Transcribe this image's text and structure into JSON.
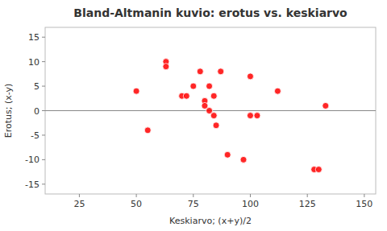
{
  "chart_data": {
    "type": "scatter",
    "title": "Bland-Altmanin kuvio: erotus vs. keskiarvo",
    "xlabel": "Keskiarvo; (x+y)/2",
    "ylabel": "Erotus; (x-y)",
    "x": [
      50,
      63,
      55,
      63,
      70,
      72,
      75,
      78,
      80,
      80,
      82,
      82,
      84,
      84,
      85,
      87,
      90,
      97,
      100,
      100,
      103,
      112,
      128,
      130,
      133
    ],
    "values": [
      4,
      10,
      -4,
      9,
      3,
      3,
      5,
      8,
      2,
      1,
      5,
      0,
      -1,
      3,
      -3,
      8,
      -9,
      -10,
      7,
      -1,
      -1,
      4,
      -12,
      -12,
      1
    ],
    "color": "#ff0000",
    "xlim": [
      10,
      155
    ],
    "ylim": [
      -17,
      17
    ],
    "xticks": [
      25,
      50,
      75,
      100,
      125,
      150
    ],
    "yticks": [
      -15,
      -10,
      -5,
      0,
      5,
      10,
      15
    ]
  }
}
